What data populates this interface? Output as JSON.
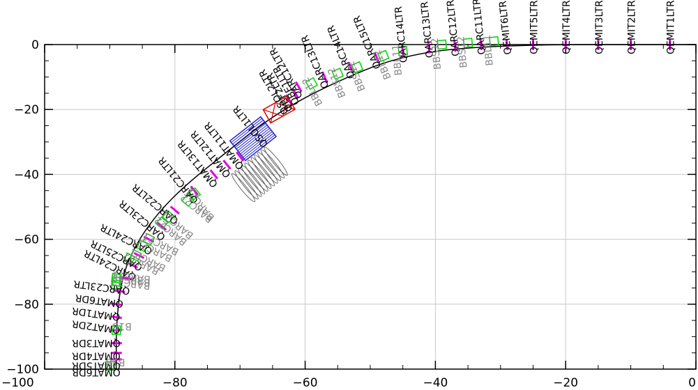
{
  "chart_data": {
    "type": "scatter",
    "title": "",
    "xlabel": "",
    "ylabel": "",
    "xlim": [
      -100,
      0
    ],
    "ylim": [
      -100,
      0
    ],
    "grid": true,
    "x_ticks": [
      -100,
      -80,
      -60,
      -40,
      -20,
      0
    ],
    "y_ticks": [
      0,
      -20,
      -40,
      -60,
      -80,
      -100
    ],
    "x_tick_labels": [
      "−100",
      "−80",
      "−60",
      "−40",
      "−20",
      "0"
    ],
    "y_tick_labels": [
      "0",
      "−20",
      "−40",
      "−60",
      "−80",
      "−100"
    ],
    "beamline_path": [
      [
        0,
        0
      ],
      [
        -30,
        0
      ],
      [
        -45,
        -3
      ],
      [
        -57,
        -13
      ],
      [
        -65,
        -22
      ],
      [
        -72,
        -33
      ],
      [
        -80,
        -46
      ],
      [
        -85,
        -58
      ],
      [
        -88,
        -70
      ],
      [
        -89,
        -85
      ],
      [
        -89,
        -100
      ]
    ],
    "quadrupoles": [
      {
        "x": -4,
        "y": 0,
        "label": "QEMIT1LTR"
      },
      {
        "x": -10,
        "y": 0,
        "label": "QEMIT2LTR"
      },
      {
        "x": -15,
        "y": 0,
        "label": "QEMIT3LTR"
      },
      {
        "x": -20,
        "y": 0,
        "label": "QEMIT4LTR"
      },
      {
        "x": -25,
        "y": 0,
        "label": "QEMIT5LTR"
      },
      {
        "x": -29,
        "y": 0,
        "label": "QEMIT6LTR"
      },
      {
        "x": -33,
        "y": 0,
        "label": "QARC11LTR"
      },
      {
        "x": -37,
        "y": -0.5,
        "label": "QARC12LTR"
      },
      {
        "x": -41,
        "y": -1,
        "label": "QARC13LTR"
      },
      {
        "x": -45,
        "y": -2.5,
        "label": "QARC14LTR"
      },
      {
        "x": -49,
        "y": -4,
        "label": "QARC15LTR"
      },
      {
        "x": -53,
        "y": -7,
        "label": "QARC14LTR"
      },
      {
        "x": -57,
        "y": -10,
        "label": "QARC13LTR"
      },
      {
        "x": -61,
        "y": -13,
        "label": "QARC12LTR"
      },
      {
        "x": -61.5,
        "y": -15,
        "label": "QBE1LTR"
      },
      {
        "x": -62.5,
        "y": -17,
        "label": "QBF2LTR"
      },
      {
        "x": -70,
        "y": -34.5,
        "label": "QMAT11LTR"
      },
      {
        "x": -72,
        "y": -37,
        "label": "QMAT12LTR"
      },
      {
        "x": -74,
        "y": -40,
        "label": "QMAT13LTR"
      },
      {
        "x": -77,
        "y": -45,
        "label": "QARC21LTR"
      },
      {
        "x": -80,
        "y": -51,
        "label": "QARC22LTR"
      },
      {
        "x": -82,
        "y": -56,
        "label": "QARC23LTR"
      },
      {
        "x": -84,
        "y": -60,
        "label": "QARC24LTR"
      },
      {
        "x": -85.5,
        "y": -65,
        "label": "QARC25LTR"
      },
      {
        "x": -86.5,
        "y": -68,
        "label": "QARC24LTR"
      },
      {
        "x": -87.5,
        "y": -72,
        "label": "QARC23LTR"
      },
      {
        "x": -88.5,
        "y": -76,
        "label": "QMAT6DR"
      },
      {
        "x": -89,
        "y": -80,
        "label": "QMAT1DR"
      },
      {
        "x": -89,
        "y": -84,
        "label": "QMAT2DR"
      },
      {
        "x": -89,
        "y": -88,
        "label": "QMAT3DR"
      },
      {
        "x": -89,
        "y": -92,
        "label": "QMAT4DR"
      },
      {
        "x": -89,
        "y": -95,
        "label": "QMAT5DR"
      },
      {
        "x": -89,
        "y": -97,
        "label": "QMAT6DR"
      }
    ],
    "bends": [
      {
        "x": -31,
        "y": 1,
        "label": "BBL11"
      },
      {
        "x": -35,
        "y": 0.5,
        "label": "BBS12"
      },
      {
        "x": -39,
        "y": 0,
        "label": "BBS12"
      },
      {
        "x": -45,
        "y": -2,
        "label": "BBL11"
      },
      {
        "x": -48,
        "y": -3.5,
        "label": "BBL12"
      },
      {
        "x": -52,
        "y": -7,
        "label": "BBS12"
      },
      {
        "x": -55,
        "y": -9,
        "label": "BBS12"
      },
      {
        "x": -59,
        "y": -12,
        "label": "BBL12"
      },
      {
        "x": -77,
        "y": -46,
        "label": "BARC21"
      },
      {
        "x": -78,
        "y": -48,
        "label": "BARC22"
      },
      {
        "x": -81,
        "y": -53,
        "label": "BARC21"
      },
      {
        "x": -82,
        "y": -55,
        "label": "BARC22"
      },
      {
        "x": -84,
        "y": -60,
        "label": "BARC21"
      },
      {
        "x": -85,
        "y": -62,
        "label": "BARC22"
      },
      {
        "x": -86,
        "y": -65,
        "label": "BARC21"
      },
      {
        "x": -87,
        "y": -66,
        "label": "BARC22"
      },
      {
        "x": -89,
        "y": -72,
        "label": "BARC21"
      },
      {
        "x": -89,
        "y": -73,
        "label": "BARC22"
      },
      {
        "x": -89,
        "y": -74,
        "label": "BARC22"
      },
      {
        "x": -89,
        "y": -88,
        "label": "B1B"
      },
      {
        "x": -90,
        "y": -99,
        "label": "B1B"
      }
    ],
    "solenoids": [
      {
        "x": -64,
        "y": -20,
        "label": "QSOL2LTR"
      }
    ],
    "cavities": [
      {
        "x": -68,
        "y": -29,
        "label": "QSOL1LTR"
      }
    ],
    "undulators": [
      {
        "x": -67,
        "y": -40,
        "label": ""
      }
    ]
  }
}
